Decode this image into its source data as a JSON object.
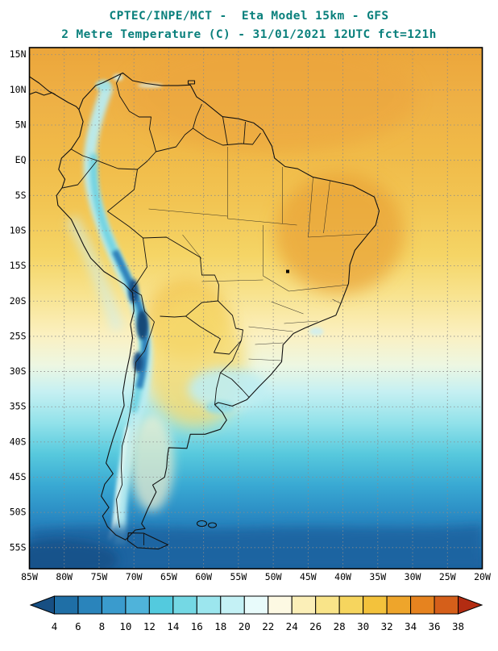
{
  "header": {
    "line1": "CPTEC/INPE/MCT -  Eta Model 15km - GFS",
    "line2": "2 Metre Temperature (C) - 31/01/2021 12UTC fct=121h",
    "title_color": "#0a807c"
  },
  "axes": {
    "lat": {
      "labels": [
        "15N",
        "10N",
        "5N",
        "EQ",
        "5S",
        "10S",
        "15S",
        "20S",
        "25S",
        "30S",
        "35S",
        "40S",
        "45S",
        "50S",
        "55S"
      ],
      "values": [
        15,
        10,
        5,
        0,
        -5,
        -10,
        -15,
        -20,
        -25,
        -30,
        -35,
        -40,
        -45,
        -50,
        -55
      ]
    },
    "lon": {
      "labels": [
        "85W",
        "80W",
        "75W",
        "70W",
        "65W",
        "60W",
        "55W",
        "50W",
        "45W",
        "40W",
        "35W",
        "30W",
        "25W",
        "20W"
      ],
      "values": [
        -85,
        -80,
        -75,
        -70,
        -65,
        -60,
        -55,
        -50,
        -45,
        -40,
        -35,
        -30,
        -25,
        -20
      ]
    }
  },
  "colorbar": {
    "unit": "C",
    "labels": [
      "4",
      "6",
      "8",
      "10",
      "12",
      "14",
      "16",
      "18",
      "20",
      "22",
      "24",
      "26",
      "28",
      "30",
      "32",
      "34",
      "36",
      "38"
    ],
    "colors": [
      "#174f83",
      "#1f6fa6",
      "#2a84bb",
      "#3a9bcd",
      "#4fb3da",
      "#53cade",
      "#74d8e4",
      "#9ce6ee",
      "#c4f1f5",
      "#e8fbfb",
      "#fdf9e3",
      "#fbefb8",
      "#f9e489",
      "#f6d55e",
      "#f3c23c",
      "#eea52b",
      "#e6831f",
      "#d55f1a",
      "#b32c12"
    ]
  }
}
